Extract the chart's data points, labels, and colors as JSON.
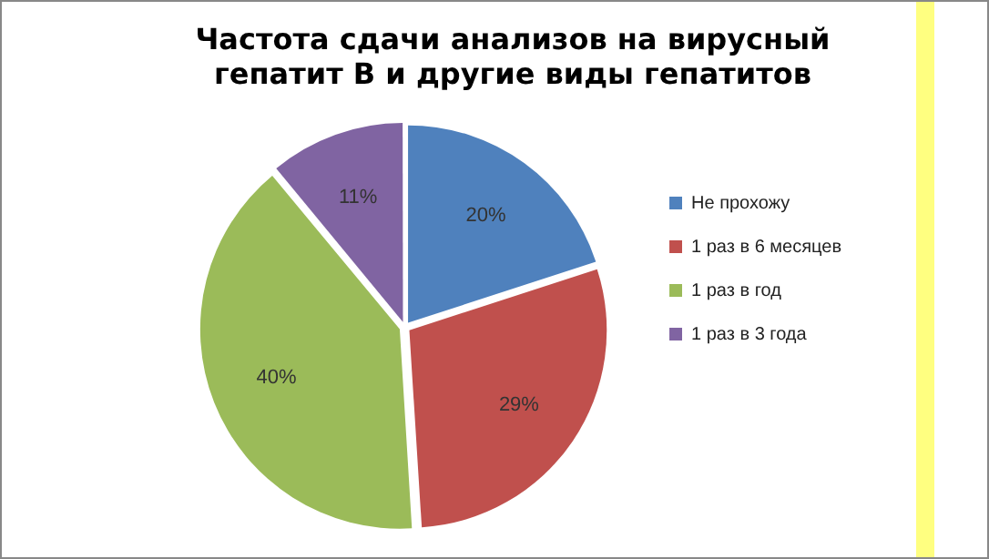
{
  "chart_data": {
    "type": "pie",
    "title": "Частота сдачи анализов на вирусный гепатит В и другие виды гепатитов",
    "categories": [
      "Не прохожу",
      "1 раз в 6 месяцев",
      "1 раз в год",
      "1 раз в 3 года"
    ],
    "values": [
      20,
      29,
      40,
      11
    ],
    "colors": [
      "#4f81bd",
      "#c0504d",
      "#9bbb59",
      "#8064a2"
    ],
    "value_labels": [
      "20%",
      "29%",
      "40%",
      "11%"
    ],
    "legend": "right"
  }
}
